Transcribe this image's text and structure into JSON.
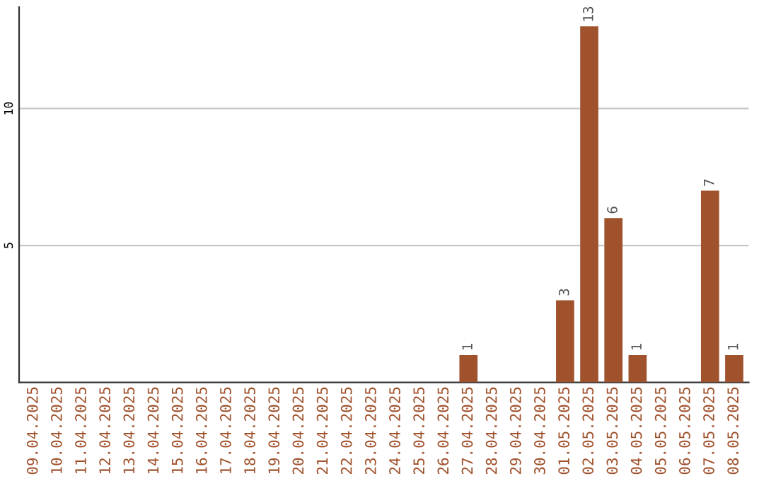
{
  "chart_data": {
    "type": "bar",
    "categories": [
      "09.04.2025",
      "10.04.2025",
      "11.04.2025",
      "12.04.2025",
      "13.04.2025",
      "14.04.2025",
      "15.04.2025",
      "16.04.2025",
      "17.04.2025",
      "18.04.2025",
      "19.04.2025",
      "20.04.2025",
      "21.04.2025",
      "22.04.2025",
      "23.04.2025",
      "24.04.2025",
      "25.04.2025",
      "26.04.2025",
      "27.04.2025",
      "28.04.2025",
      "29.04.2025",
      "30.04.2025",
      "01.05.2025",
      "02.05.2025",
      "03.05.2025",
      "04.05.2025",
      "05.05.2025",
      "06.05.2025",
      "07.05.2025",
      "08.05.2025"
    ],
    "values": [
      0,
      0,
      0,
      0,
      0,
      0,
      0,
      0,
      0,
      0,
      0,
      0,
      0,
      0,
      0,
      0,
      0,
      0,
      1,
      0,
      0,
      0,
      3,
      13,
      6,
      1,
      0,
      0,
      7,
      1
    ],
    "value_labels": [
      null,
      null,
      null,
      null,
      null,
      null,
      null,
      null,
      null,
      null,
      null,
      null,
      null,
      null,
      null,
      null,
      null,
      null,
      "1",
      null,
      null,
      null,
      "3",
      "13",
      "6",
      "1",
      null,
      null,
      "7",
      "1"
    ],
    "color": "#a0522d",
    "ylim": [
      0,
      13.7
    ],
    "yticks": [
      5,
      10
    ],
    "grid": "y"
  }
}
